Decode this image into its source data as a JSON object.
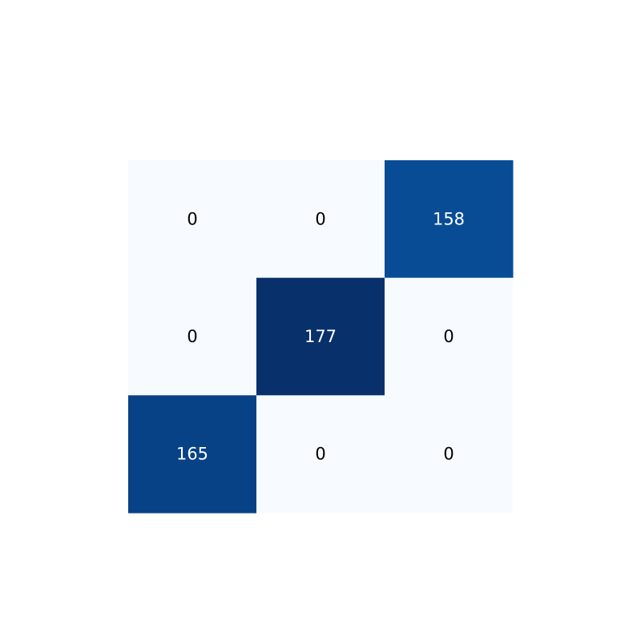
{
  "chart_data": {
    "type": "heatmap",
    "title": "",
    "xlabel": "",
    "ylabel": "",
    "rows": 3,
    "cols": 3,
    "values": [
      [
        0,
        0,
        158
      ],
      [
        0,
        177,
        0
      ],
      [
        165,
        0,
        0
      ]
    ],
    "labels": [
      [
        "0",
        "0",
        "158"
      ],
      [
        "0",
        "177",
        "0"
      ],
      [
        "165",
        "0",
        "0"
      ]
    ],
    "colormap": "Blues",
    "colors": {
      "min": "#f7fbff",
      "max": "#08306b",
      "text_dark": "#000000",
      "text_light": "#ffffff"
    },
    "vmin": 0,
    "vmax": 177,
    "grid": false,
    "legend": "none"
  }
}
